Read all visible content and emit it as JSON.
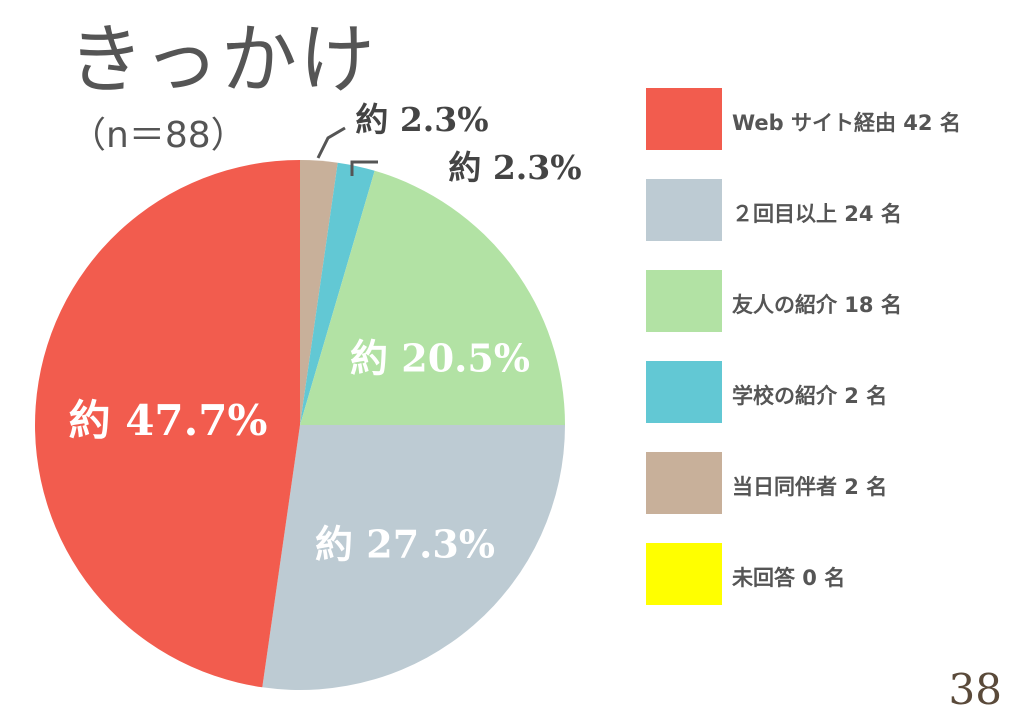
{
  "title": "きっかけ",
  "subtitle": "（n＝88）",
  "page_number": "38",
  "chart_data": {
    "type": "pie",
    "start_angle_deg": 0,
    "direction": "clockwise",
    "slices": [
      {
        "label": "当日同伴者 2 名",
        "value": 2,
        "percent_label": "約 2.3%",
        "color": "#c8b09a"
      },
      {
        "label": "学校の紹介 2 名",
        "value": 2,
        "percent_label": "約 2.3%",
        "color": "#62c8d4"
      },
      {
        "label": "友人の紹介 18 名",
        "value": 18,
        "percent_label": "約 20.5%",
        "color": "#b2e2a4"
      },
      {
        "label": "２回目以上 24 名",
        "value": 24,
        "percent_label": "約 27.3%",
        "color": "#bdcbd3"
      },
      {
        "label": "Web サイト経由 42 名",
        "value": 42,
        "percent_label": "約 47.7%",
        "color": "#f25c4e"
      }
    ],
    "legend": [
      {
        "label": "Web サイト経由 42 名",
        "color": "#f25c4e"
      },
      {
        "label": "２回目以上 24 名",
        "color": "#bdcbd3"
      },
      {
        "label": "友人の紹介 18 名",
        "color": "#b2e2a4"
      },
      {
        "label": "学校の紹介 2 名",
        "color": "#62c8d4"
      },
      {
        "label": "当日同伴者 2 名",
        "color": "#c8b09a"
      },
      {
        "label": "未回答 0 名",
        "color": "#ffff00"
      }
    ],
    "legend_position": "right"
  }
}
